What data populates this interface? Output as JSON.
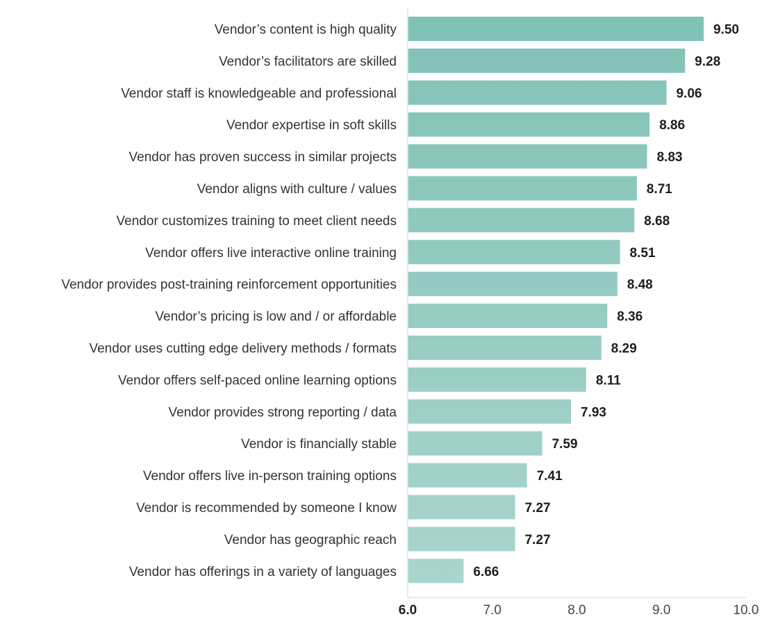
{
  "chart_data": {
    "type": "bar",
    "orientation": "horizontal",
    "categories": [
      "Vendor’s content is high quality",
      "Vendor’s facilitators are skilled",
      "Vendor staff is knowledgeable and professional",
      "Vendor expertise in soft skills",
      "Vendor has proven success in similar projects",
      "Vendor aligns with culture / values",
      "Vendor customizes training to meet client needs",
      "Vendor offers live interactive online training",
      "Vendor provides post-training reinforcement opportunities",
      "Vendor’s pricing is low and / or affordable",
      "Vendor uses cutting edge delivery methods / formats",
      "Vendor offers self-paced online learning options",
      "Vendor provides strong reporting / data",
      "Vendor is financially stable",
      "Vendor offers live in-person training options",
      "Vendor is recommended by someone I know",
      "Vendor has geographic reach",
      "Vendor has offerings in a variety of languages"
    ],
    "values": [
      9.5,
      9.28,
      9.06,
      8.86,
      8.83,
      8.71,
      8.68,
      8.51,
      8.48,
      8.36,
      8.29,
      8.11,
      7.93,
      7.59,
      7.41,
      7.27,
      7.27,
      6.66
    ],
    "value_labels": [
      "9.50",
      "9.28",
      "9.06",
      "8.86",
      "8.83",
      "8.71",
      "8.68",
      "8.51",
      "8.48",
      "8.36",
      "8.29",
      "8.11",
      "7.93",
      "7.59",
      "7.41",
      "7.27",
      "7.27",
      "6.66"
    ],
    "xlim": [
      6.0,
      10.0
    ],
    "xticks": [
      "6.0",
      "7.0",
      "8.0",
      "9.0",
      "10.0"
    ],
    "title": "",
    "xlabel": "",
    "ylabel": "",
    "grid": false,
    "legend": "none",
    "colors": {
      "bar_top": "#80c1b6",
      "bar_bottom": "#a9d5ce",
      "axis": "#d9ebe7",
      "value_text": "#1e1e1e",
      "label_text": "#333333"
    }
  }
}
